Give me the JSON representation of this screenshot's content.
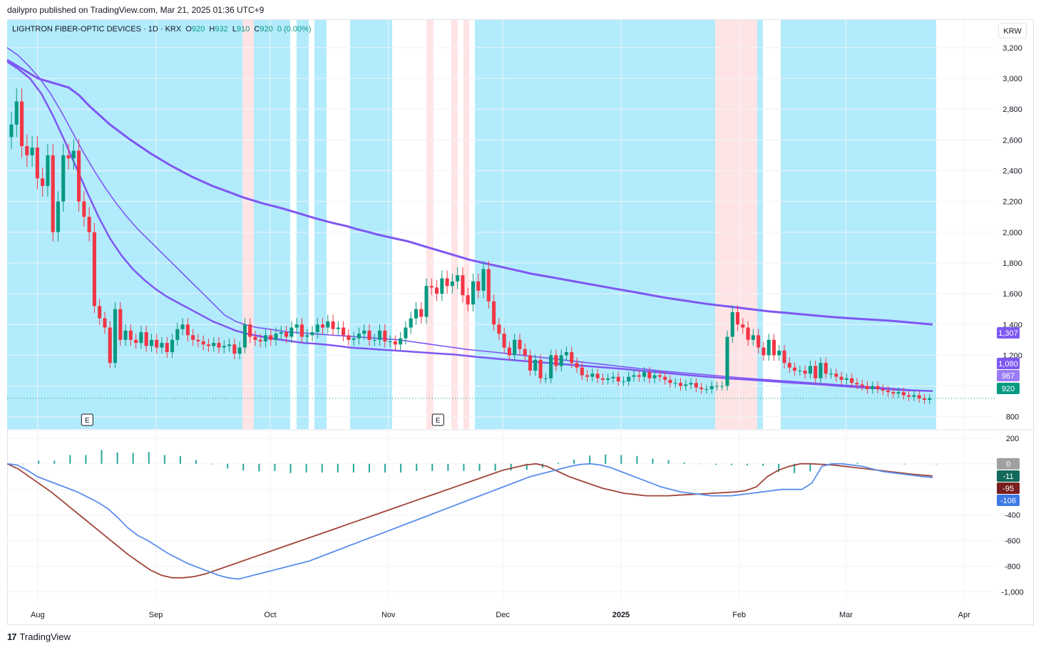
{
  "header": {
    "published": "dailypro published on TradingView.com, Mar 21, 2025 01:36 UTC+9"
  },
  "legend": {
    "name": "LIGHTRON FIBER-OPTIC DEVICES",
    "sep1": "·",
    "tf": "1D",
    "sep2": "·",
    "exch": "KRX",
    "o_label": "O",
    "o": "920",
    "h_label": "H",
    "h": "932",
    "l_label": "L",
    "l": "910",
    "c_label": "C",
    "c": "920",
    "chg": "0 (0.00%)"
  },
  "currency_button": "KRW",
  "footer": {
    "brand": "TradingView"
  },
  "colors": {
    "up": "#089981",
    "down": "#f23645",
    "bg_bull": "#b2ebfc",
    "bg_bear": "#ffe4e6",
    "ma": "#7e57f2",
    "ma_fast": "#f5c26b",
    "macd": "#5b8dec",
    "signal": "#a0443a",
    "hist": "#26a69a"
  },
  "chart_data": {
    "type": "candlestick",
    "price_axis": {
      "ticks": [
        "3,200",
        "3,000",
        "2,800",
        "2,600",
        "2,400",
        "2,200",
        "2,000",
        "1,800",
        "1,600",
        "1,400",
        "1,200",
        "800"
      ],
      "range": [
        720,
        3380
      ]
    },
    "time_axis": {
      "ticks": [
        "Aug",
        "Sep",
        "Oct",
        "Nov",
        "Dec",
        "2025",
        "Feb",
        "Mar",
        "Apr"
      ],
      "dates": [
        "2024-08-01",
        "2024-09-01",
        "2024-10-01",
        "2024-11-01",
        "2024-12-01",
        "2025-01-01",
        "2025-02-01",
        "2025-03-01",
        "2025-04-01"
      ]
    },
    "earnings": [
      {
        "date": "2024-08-14",
        "label": "E"
      },
      {
        "date": "2024-11-14",
        "label": "E"
      }
    ],
    "closes": [
      2700,
      2850,
      2560,
      2500,
      2550,
      2350,
      2300,
      2500,
      2000,
      2200,
      2500,
      2480,
      2530,
      2200,
      2100,
      2000,
      1520,
      1440,
      1380,
      1150,
      1500,
      1300,
      1360,
      1300,
      1280,
      1350,
      1260,
      1300,
      1250,
      1280,
      1220,
      1300,
      1370,
      1400,
      1330,
      1300,
      1290,
      1270,
      1260,
      1280,
      1250,
      1260,
      1270,
      1210,
      1250,
      1400,
      1320,
      1300,
      1290,
      1330,
      1300,
      1340,
      1350,
      1320,
      1380,
      1400,
      1320,
      1330,
      1350,
      1400,
      1380,
      1420,
      1370,
      1380,
      1330,
      1300,
      1310,
      1340,
      1360,
      1300,
      1300,
      1360,
      1290,
      1290,
      1270,
      1310,
      1380,
      1440,
      1500,
      1450,
      1650,
      1640,
      1600,
      1700,
      1650,
      1680,
      1720,
      1590,
      1530,
      1680,
      1620,
      1760,
      1550,
      1400,
      1340,
      1250,
      1200,
      1300,
      1240,
      1200,
      1100,
      1170,
      1050,
      1050,
      1200,
      1130,
      1200,
      1220,
      1150,
      1120,
      1070,
      1060,
      1080,
      1050,
      1040,
      1050,
      1060,
      1030,
      1030,
      1060,
      1070,
      1060,
      1090,
      1050,
      1070,
      1060,
      1040,
      1020,
      1020,
      1000,
      1010,
      1020,
      990,
      980,
      980,
      1000,
      1000,
      1000,
      1320,
      1480,
      1400,
      1380,
      1300,
      1330,
      1250,
      1200,
      1300,
      1200,
      1230,
      1150,
      1120,
      1100,
      1100,
      1080,
      1130,
      1050,
      1150,
      1080,
      1080,
      1060,
      1040,
      1050,
      1020,
      1010,
      1000,
      980,
      1000,
      980,
      970,
      960,
      950,
      960,
      940,
      930,
      940,
      920,
      910,
      920
    ],
    "moving_averages": [
      {
        "values": [
          3120,
          3080,
          3040,
          3000,
          2980,
          2960,
          2940,
          2890,
          2820,
          2760,
          2700,
          2650,
          2600,
          2555,
          2510,
          2470,
          2430,
          2395,
          2360,
          2330,
          2300,
          2275,
          2250,
          2225,
          2205,
          2185,
          2168,
          2150,
          2130,
          2110,
          2090,
          2072,
          2055,
          2040,
          2020,
          2003,
          1985,
          1970,
          1955,
          1940,
          1920,
          1900,
          1880,
          1860,
          1840,
          1820,
          1805,
          1790,
          1775,
          1760,
          1745,
          1730,
          1718,
          1706,
          1694,
          1682,
          1670,
          1658,
          1646,
          1634,
          1622,
          1610,
          1598,
          1586,
          1574,
          1564,
          1554,
          1544,
          1534,
          1526,
          1518,
          1510,
          1502,
          1494,
          1486,
          1480,
          1474,
          1468,
          1462,
          1456,
          1450,
          1445,
          1440,
          1436,
          1432,
          1428,
          1424,
          1418,
          1412,
          1406,
          1400
        ],
        "label": "1,307"
      },
      {
        "values": [
          3110,
          3060,
          3000,
          2900,
          2760,
          2600,
          2430,
          2260,
          2100,
          1960,
          1850,
          1760,
          1690,
          1630,
          1580,
          1540,
          1500,
          1460,
          1420,
          1390,
          1360,
          1340,
          1325,
          1310,
          1300,
          1290,
          1280,
          1275,
          1268,
          1260,
          1250,
          1245,
          1240,
          1235,
          1230,
          1225,
          1220,
          1215,
          1210,
          1205,
          1198,
          1190,
          1183,
          1176,
          1170,
          1164,
          1158,
          1152,
          1146,
          1140,
          1134,
          1128,
          1122,
          1116,
          1110,
          1103,
          1096,
          1090,
          1082,
          1075,
          1068,
          1062,
          1056,
          1050,
          1045,
          1040,
          1035,
          1030,
          1025,
          1020,
          1015,
          1010,
          1005,
          1000,
          995,
          990,
          985,
          980,
          975,
          972,
          970,
          967
        ],
        "label": "1,080"
      },
      {
        "values": [
          3200,
          3150,
          3080,
          3000,
          2900,
          2780,
          2650,
          2520,
          2400,
          2290,
          2190,
          2100,
          2020,
          1950,
          1880,
          1810,
          1740,
          1670,
          1600,
          1530,
          1460,
          1420,
          1395,
          1380,
          1370,
          1360,
          1350,
          1345,
          1340,
          1335,
          1330,
          1325,
          1320,
          1315,
          1310,
          1305,
          1300,
          1290,
          1280,
          1270,
          1260,
          1250,
          1240,
          1232,
          1225,
          1218,
          1210,
          1202,
          1194,
          1186,
          1178,
          1170,
          1162,
          1154,
          1146,
          1138,
          1130,
          1122,
          1114,
          1106,
          1098,
          1092,
          1086,
          1080,
          1074,
          1068,
          1062,
          1056,
          1050,
          1045,
          1040,
          1035,
          1030,
          1025,
          1020,
          1015,
          1010,
          1005,
          1000,
          995,
          990,
          985,
          980,
          975,
          970,
          967
        ],
        "label": "967"
      }
    ],
    "last_price_label": "920",
    "macd_axis": {
      "ticks": [
        "200",
        "-400",
        "-600",
        "-800",
        "-1,000"
      ],
      "range": [
        -1070,
        260
      ]
    },
    "macd": {
      "values": [
        0,
        -10,
        -50,
        -100,
        -130,
        -160,
        -190,
        -220,
        -260,
        -300,
        -350,
        -420,
        -500,
        -560,
        -600,
        -650,
        -700,
        -740,
        -780,
        -810,
        -840,
        -870,
        -890,
        -900,
        -880,
        -860,
        -840,
        -820,
        -800,
        -780,
        -760,
        -730,
        -700,
        -670,
        -640,
        -610,
        -580,
        -550,
        -520,
        -490,
        -460,
        -430,
        -400,
        -370,
        -340,
        -310,
        -280,
        -250,
        -220,
        -190,
        -160,
        -130,
        -100,
        -80,
        -60,
        -40,
        -20,
        -5,
        0,
        -10,
        -30,
        -60,
        -90,
        -120,
        -150,
        -180,
        -200,
        -220,
        -230,
        -240,
        -250,
        -250,
        -250,
        -240,
        -230,
        -220,
        -210,
        -200,
        -200,
        -200,
        -150,
        -20,
        0,
        0,
        -10,
        -20,
        -40,
        -60,
        -70,
        -80,
        -90,
        -100,
        -106
      ],
      "label": "-106"
    },
    "signal": {
      "values": [
        0,
        -40,
        -100,
        -160,
        -220,
        -290,
        -360,
        -430,
        -500,
        -570,
        -640,
        -710,
        -770,
        -830,
        -870,
        -890,
        -890,
        -880,
        -860,
        -830,
        -800,
        -770,
        -740,
        -710,
        -680,
        -650,
        -620,
        -590,
        -560,
        -530,
        -500,
        -470,
        -440,
        -410,
        -380,
        -350,
        -320,
        -290,
        -260,
        -230,
        -200,
        -170,
        -140,
        -110,
        -80,
        -50,
        -30,
        -10,
        0,
        -20,
        -60,
        -100,
        -130,
        -160,
        -190,
        -210,
        -230,
        -240,
        -250,
        -250,
        -250,
        -245,
        -240,
        -235,
        -230,
        -225,
        -220,
        -210,
        -180,
        -100,
        -50,
        -20,
        0,
        0,
        -5,
        -10,
        -20,
        -30,
        -40,
        -50,
        -60,
        -70,
        -80,
        -88,
        -95
      ],
      "label": "-95"
    },
    "histogram_label": "-11",
    "zero_label": "0"
  }
}
